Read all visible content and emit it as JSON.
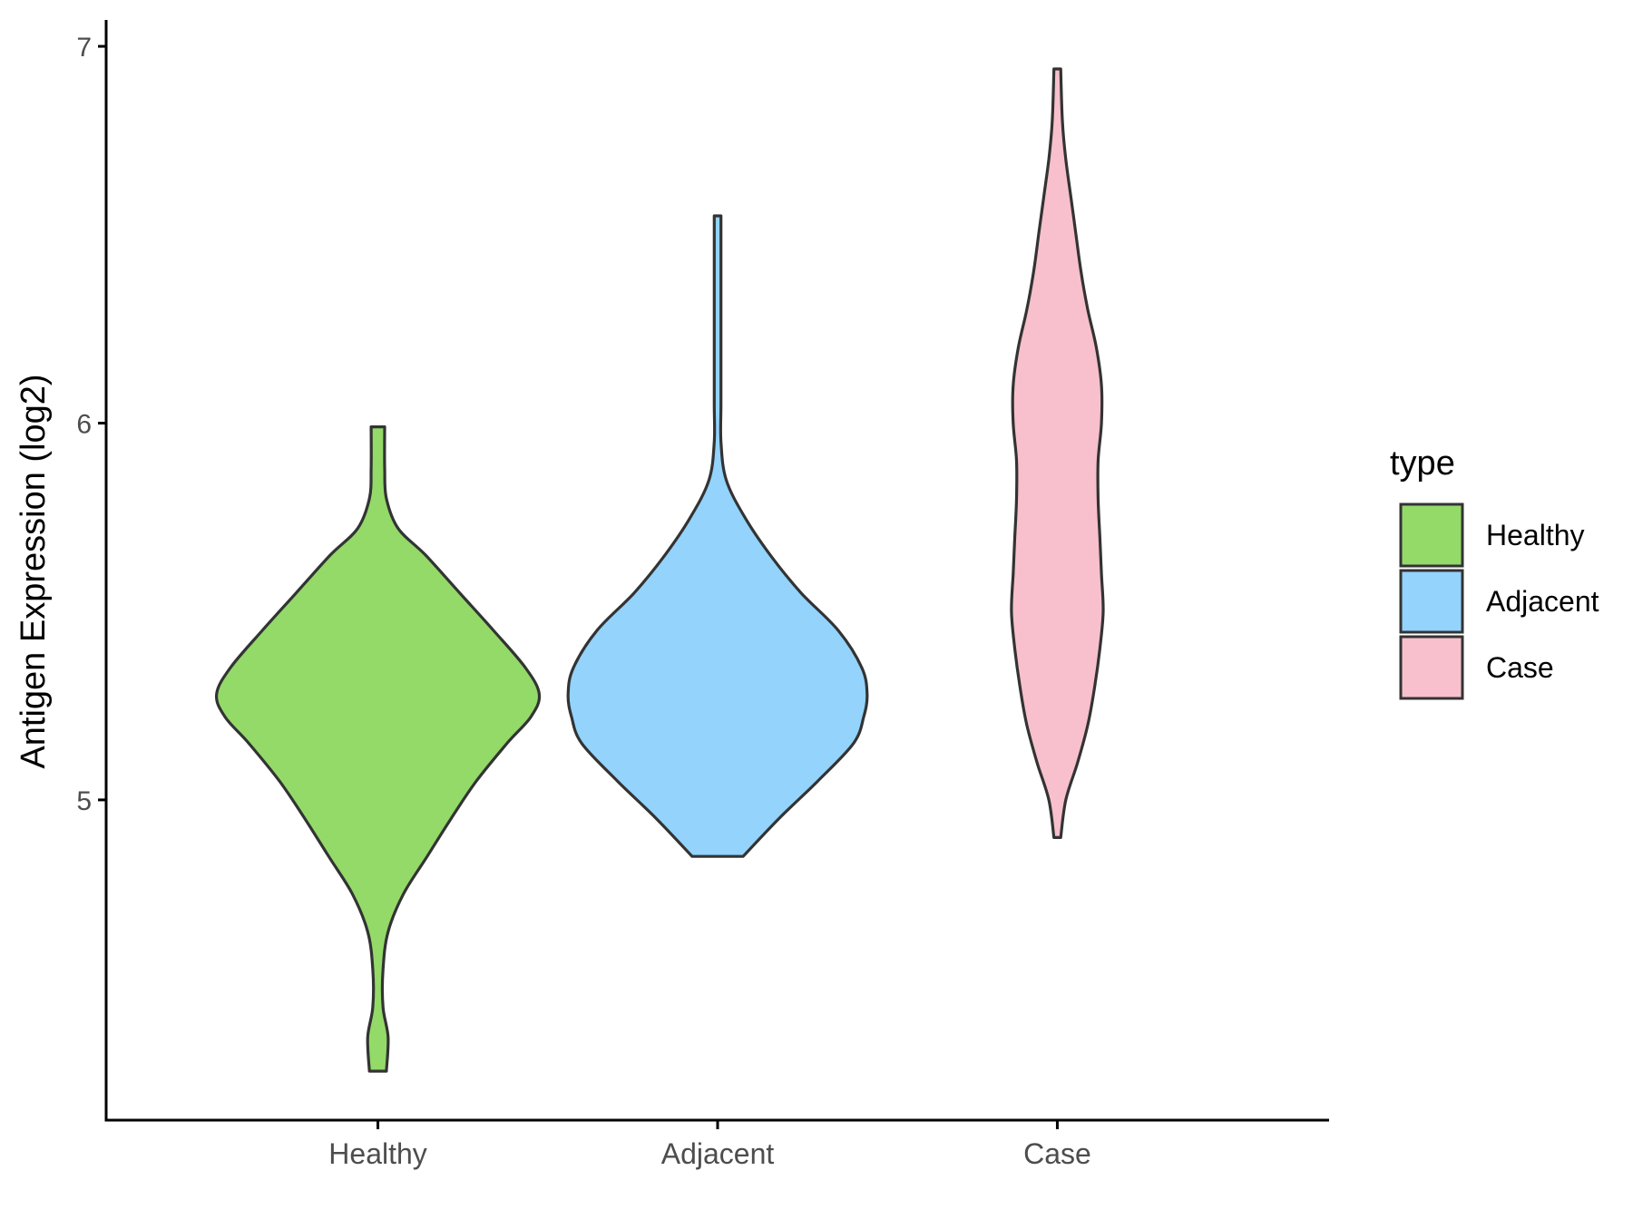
{
  "chart_data": {
    "type": "violin",
    "ylabel": "Antigen Expression (log2)",
    "xlabel": "",
    "categories": [
      "Healthy",
      "Adjacent",
      "Case"
    ],
    "ylim": [
      4.15,
      7.07
    ],
    "yticks": [
      5,
      6,
      7
    ],
    "grid": false,
    "legend": {
      "title": "type",
      "position": "right",
      "items": [
        "Healthy",
        "Adjacent",
        "Case"
      ]
    },
    "colors": {
      "Healthy": "#93DA69",
      "Adjacent": "#93D3FC",
      "Case": "#F7C0CC",
      "outline": "#333333"
    },
    "violins": [
      {
        "name": "Healthy",
        "min": 4.28,
        "max": 5.99,
        "profile": [
          [
            4.28,
            0.05
          ],
          [
            4.37,
            0.06
          ],
          [
            4.45,
            0.03
          ],
          [
            4.55,
            0.03
          ],
          [
            4.65,
            0.06
          ],
          [
            4.75,
            0.15
          ],
          [
            4.85,
            0.29
          ],
          [
            4.95,
            0.43
          ],
          [
            5.05,
            0.58
          ],
          [
            5.15,
            0.76
          ],
          [
            5.22,
            0.9
          ],
          [
            5.28,
            0.95
          ],
          [
            5.35,
            0.87
          ],
          [
            5.45,
            0.68
          ],
          [
            5.55,
            0.48
          ],
          [
            5.65,
            0.28
          ],
          [
            5.72,
            0.12
          ],
          [
            5.8,
            0.05
          ],
          [
            5.88,
            0.04
          ],
          [
            5.99,
            0.04
          ]
        ]
      },
      {
        "name": "Adjacent",
        "min": 4.85,
        "max": 6.55,
        "profile": [
          [
            4.85,
            0.15
          ],
          [
            4.95,
            0.36
          ],
          [
            5.05,
            0.59
          ],
          [
            5.15,
            0.8
          ],
          [
            5.22,
            0.86
          ],
          [
            5.28,
            0.88
          ],
          [
            5.35,
            0.85
          ],
          [
            5.45,
            0.71
          ],
          [
            5.55,
            0.49
          ],
          [
            5.65,
            0.31
          ],
          [
            5.75,
            0.16
          ],
          [
            5.85,
            0.05
          ],
          [
            5.95,
            0.02
          ],
          [
            6.05,
            0.02
          ],
          [
            6.2,
            0.02
          ],
          [
            6.35,
            0.02
          ],
          [
            6.45,
            0.02
          ],
          [
            6.55,
            0.02
          ]
        ]
      },
      {
        "name": "Case",
        "min": 4.9,
        "max": 6.94,
        "profile": [
          [
            4.9,
            0.02
          ],
          [
            5.0,
            0.05
          ],
          [
            5.1,
            0.12
          ],
          [
            5.2,
            0.18
          ],
          [
            5.3,
            0.22
          ],
          [
            5.4,
            0.25
          ],
          [
            5.5,
            0.27
          ],
          [
            5.6,
            0.26
          ],
          [
            5.7,
            0.25
          ],
          [
            5.8,
            0.24
          ],
          [
            5.9,
            0.24
          ],
          [
            6.0,
            0.26
          ],
          [
            6.1,
            0.26
          ],
          [
            6.2,
            0.23
          ],
          [
            6.3,
            0.18
          ],
          [
            6.4,
            0.14
          ],
          [
            6.5,
            0.11
          ],
          [
            6.6,
            0.08
          ],
          [
            6.7,
            0.05
          ],
          [
            6.8,
            0.03
          ],
          [
            6.94,
            0.02
          ]
        ]
      }
    ]
  }
}
